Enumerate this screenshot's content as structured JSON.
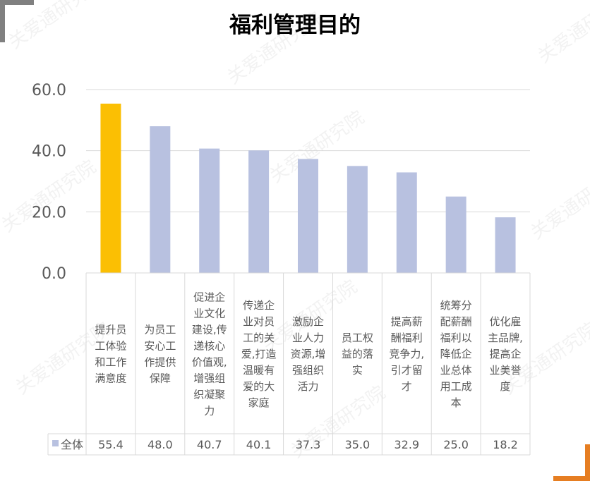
{
  "colors": {
    "highlight": "#fbbf03",
    "bar": "#b8c1e0",
    "grid": "#d9d9d9",
    "axis_text": "#595959",
    "corner_left": "#808080",
    "corner_right": "#e67e22"
  },
  "watermark": {
    "text": "关爱通研究院"
  },
  "chart_data": {
    "type": "bar",
    "title": "福利管理目的",
    "ylim": [
      0,
      60
    ],
    "yticks": [
      "0.0",
      "20.0",
      "40.0",
      "60.0"
    ],
    "grid": true,
    "categories": [
      "提升员工体验和工作满意度",
      "为员工安心工作提供保障",
      "促进企业文化建设,传递核心价值观,增强组织凝聚力",
      "传递企业对员工的关爱,打造温暖有爱的大家庭",
      "激励企业人力资源,增强组织活力",
      "员工权益的落实",
      "提高薪酬福利竞争力,引才留才",
      "统筹分配薪酬福利以降低企业总体用工成本",
      "优化雇主品牌,提高企业美誉度"
    ],
    "category_lines": [
      [
        "提升员",
        "工体验",
        "和工作",
        "满意度"
      ],
      [
        "为员工",
        "安心工",
        "作提供",
        "保障"
      ],
      [
        "促进企",
        "业文化",
        "建设,传",
        "递核心",
        "价值观,",
        "增强组",
        "织凝聚",
        "力"
      ],
      [
        "传递企",
        "业对员",
        "工的关",
        "爱,打造",
        "温暖有",
        "爱的大",
        "家庭"
      ],
      [
        "激励企",
        "业人力",
        "资源,增",
        "强组织",
        "活力"
      ],
      [
        "员工权",
        "益的落",
        "实"
      ],
      [
        "提高薪",
        "酬福利",
        "竞争力,",
        "引才留",
        "才"
      ],
      [
        "统筹分",
        "配薪酬",
        "福利以",
        "降低企",
        "业总体",
        "用工成",
        "本"
      ],
      [
        "优化雇",
        "主品牌,",
        "提高企",
        "业美誉",
        "度"
      ]
    ],
    "series": [
      {
        "name": "全体",
        "values": [
          55.4,
          48.0,
          40.7,
          40.1,
          37.3,
          35.0,
          32.9,
          25.0,
          18.2
        ],
        "labels": [
          "55.4",
          "48.0",
          "40.7",
          "40.1",
          "37.3",
          "35.0",
          "32.9",
          "25.0",
          "18.2"
        ]
      }
    ],
    "highlight_index": 0,
    "legend": "data-table-left"
  }
}
